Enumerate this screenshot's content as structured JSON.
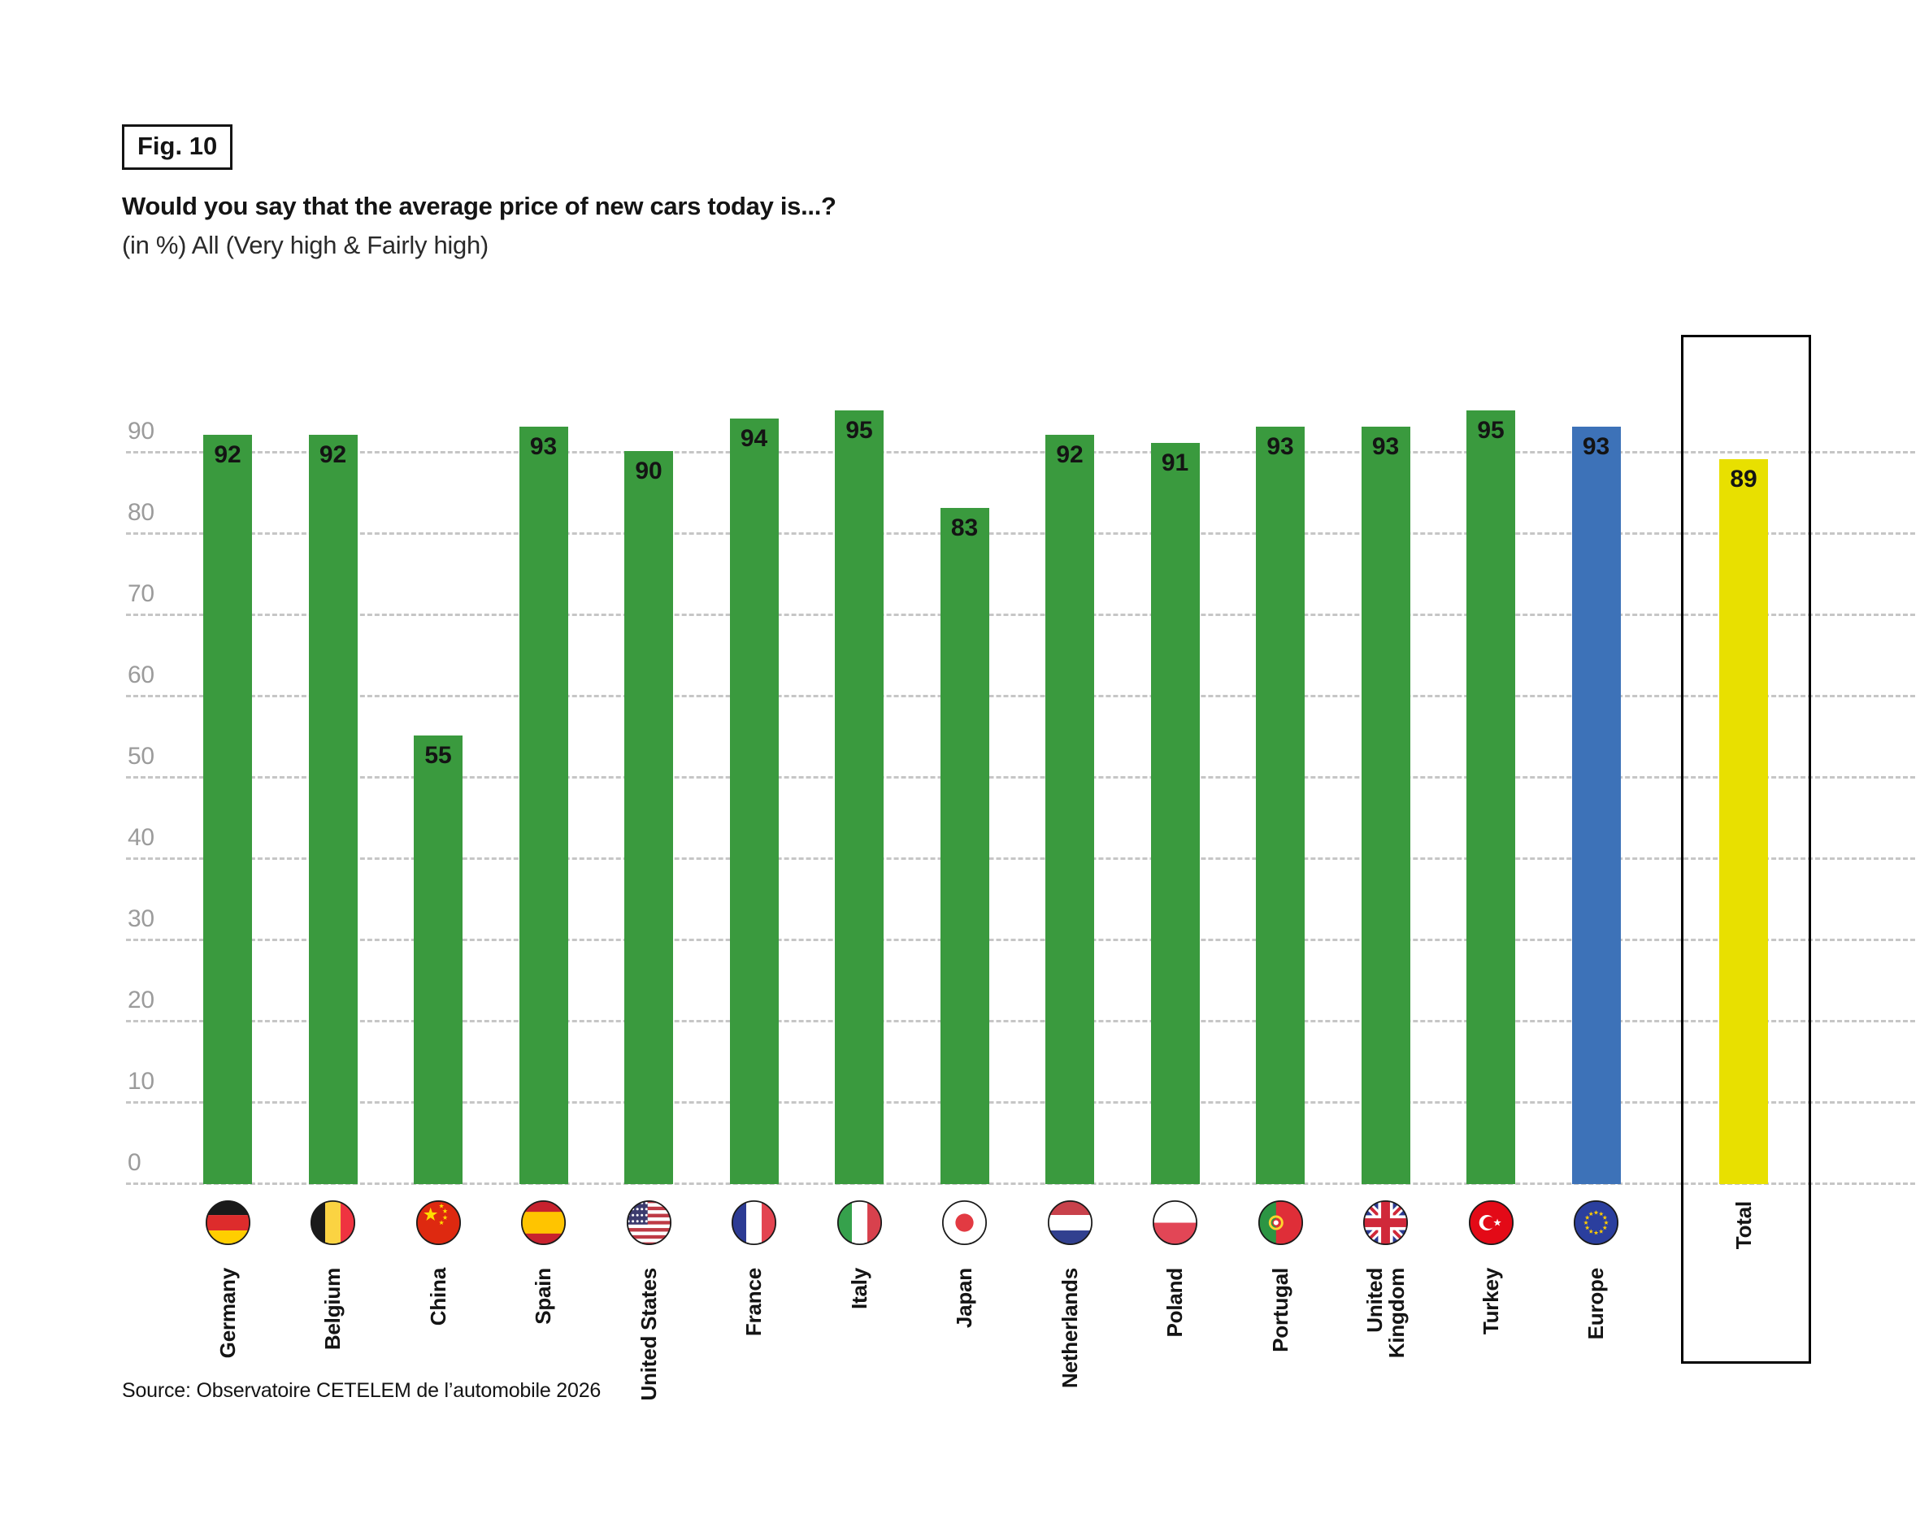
{
  "figure_label": "Fig. 10",
  "title": "Would you say that the average price of new cars today is...?",
  "subtitle": "(in %) All (Very high & Fairly high)",
  "source": "Source: Observatoire CETELEM de l’automobile 2026",
  "colors": {
    "country_bar": "#3A9A3E",
    "europe_bar": "#3D72B8",
    "total_bar": "#E8E000",
    "gridline": "#C6C6C6",
    "tick_label": "#9B9B9B",
    "value_label": "#141414",
    "total_box_border": "#000000"
  },
  "y_axis": {
    "ticks": [
      0,
      10,
      20,
      30,
      40,
      50,
      60,
      70,
      80,
      90
    ]
  },
  "columns": [
    {
      "id": "germany",
      "label": "Germany",
      "value": 92,
      "flag": "germany",
      "role": "country"
    },
    {
      "id": "belgium",
      "label": "Belgium",
      "value": 92,
      "flag": "belgium",
      "role": "country"
    },
    {
      "id": "china",
      "label": "China",
      "value": 55,
      "flag": "china",
      "role": "country"
    },
    {
      "id": "spain",
      "label": "Spain",
      "value": 93,
      "flag": "spain",
      "role": "country"
    },
    {
      "id": "united-states",
      "label": "United States",
      "value": 90,
      "flag": "united-states",
      "role": "country"
    },
    {
      "id": "france",
      "label": "France",
      "value": 94,
      "flag": "france",
      "role": "country"
    },
    {
      "id": "italy",
      "label": "Italy",
      "value": 95,
      "flag": "italy",
      "role": "country"
    },
    {
      "id": "japan",
      "label": "Japan",
      "value": 83,
      "flag": "japan",
      "role": "country"
    },
    {
      "id": "netherlands",
      "label": "Netherlands",
      "value": 92,
      "flag": "netherlands",
      "role": "country"
    },
    {
      "id": "poland",
      "label": "Poland",
      "value": 91,
      "flag": "poland",
      "role": "country"
    },
    {
      "id": "portugal",
      "label": "Portugal",
      "value": 93,
      "flag": "portugal",
      "role": "country"
    },
    {
      "id": "united-kingdom",
      "label": "United\nKingdom",
      "value": 93,
      "flag": "united-kingdom",
      "role": "country"
    },
    {
      "id": "turkey",
      "label": "Turkey",
      "value": 95,
      "flag": "turkey",
      "role": "country"
    },
    {
      "id": "europe",
      "label": "Europe",
      "value": 93,
      "flag": "europe",
      "role": "europe"
    },
    {
      "id": "total",
      "label": "Total",
      "value": 89,
      "flag": null,
      "role": "total"
    }
  ],
  "chart_data": {
    "type": "bar",
    "title": "Would you say that the average price of new cars today is...?",
    "subtitle": "(in %) All (Very high & Fairly high)",
    "xlabel": "",
    "ylabel": "",
    "ylim": [
      0,
      100
    ],
    "yticks": [
      0,
      10,
      20,
      30,
      40,
      50,
      60,
      70,
      80,
      90
    ],
    "grid": "horizontal-dashed",
    "legend_position": "none",
    "categories": [
      "Germany",
      "Belgium",
      "China",
      "Spain",
      "United States",
      "France",
      "Italy",
      "Japan",
      "Netherlands",
      "Poland",
      "Portugal",
      "United Kingdom",
      "Turkey",
      "Europe",
      "Total"
    ],
    "values": [
      92,
      92,
      55,
      93,
      90,
      94,
      95,
      83,
      92,
      91,
      93,
      93,
      95,
      93,
      89
    ],
    "series": [
      {
        "name": "All (Very high & Fairly high), %",
        "values": [
          92,
          92,
          55,
          93,
          90,
          94,
          95,
          83,
          92,
          91,
          93,
          93,
          95,
          93,
          89
        ]
      }
    ],
    "bar_colors": [
      "#3A9A3E",
      "#3A9A3E",
      "#3A9A3E",
      "#3A9A3E",
      "#3A9A3E",
      "#3A9A3E",
      "#3A9A3E",
      "#3A9A3E",
      "#3A9A3E",
      "#3A9A3E",
      "#3A9A3E",
      "#3A9A3E",
      "#3A9A3E",
      "#3D72B8",
      "#E8E000"
    ],
    "annotations": "value labels inside bar tops; Total column framed by black rectangle"
  }
}
